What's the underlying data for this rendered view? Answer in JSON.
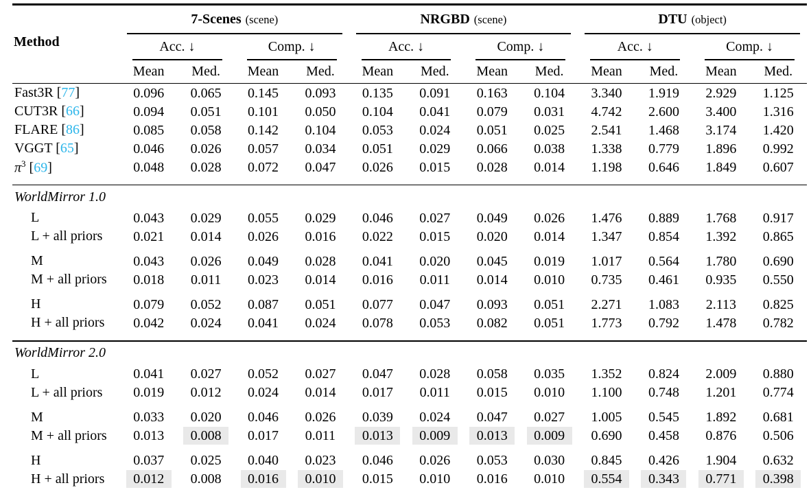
{
  "colors": {
    "citation": "#2bb5ea",
    "highlight": "#e9e9e9"
  },
  "header": {
    "method_label": "Method",
    "groups": [
      {
        "name": "7-Scenes",
        "qualifier": "(scene)"
      },
      {
        "name": "NRGBD",
        "qualifier": "(scene)"
      },
      {
        "name": "DTU",
        "qualifier": "(object)"
      }
    ],
    "metrics": [
      "Acc. ↓",
      "Comp. ↓"
    ],
    "subcols": [
      "Mean",
      "Med."
    ]
  },
  "body": [
    {
      "type": "rows",
      "rows": [
        {
          "label": "Fast3R",
          "cite": "77",
          "values": [
            "0.096",
            "0.065",
            "0.145",
            "0.093",
            "0.135",
            "0.091",
            "0.163",
            "0.104",
            "3.340",
            "1.919",
            "2.929",
            "1.125"
          ]
        },
        {
          "label": "CUT3R",
          "cite": "66",
          "values": [
            "0.094",
            "0.051",
            "0.101",
            "0.050",
            "0.104",
            "0.041",
            "0.079",
            "0.031",
            "4.742",
            "2.600",
            "3.400",
            "1.316"
          ]
        },
        {
          "label": "FLARE",
          "cite": "86",
          "values": [
            "0.085",
            "0.058",
            "0.142",
            "0.104",
            "0.053",
            "0.024",
            "0.051",
            "0.025",
            "2.541",
            "1.468",
            "3.174",
            "1.420"
          ]
        },
        {
          "label": "VGGT",
          "cite": "65",
          "values": [
            "0.046",
            "0.026",
            "0.057",
            "0.034",
            "0.051",
            "0.029",
            "0.066",
            "0.038",
            "1.338",
            "0.779",
            "1.896",
            "0.992"
          ]
        },
        {
          "label": "π",
          "sup": "3",
          "italic": true,
          "cite": "69",
          "values": [
            "0.048",
            "0.028",
            "0.072",
            "0.047",
            "0.026",
            "0.015",
            "0.028",
            "0.014",
            "1.198",
            "0.646",
            "1.849",
            "0.607"
          ]
        }
      ]
    },
    {
      "type": "section",
      "title": "WorldMirror 1.0",
      "rows": [
        {
          "label": "L",
          "indent": true,
          "values": [
            "0.043",
            "0.029",
            "0.055",
            "0.029",
            "0.046",
            "0.027",
            "0.049",
            "0.026",
            "1.476",
            "0.889",
            "1.768",
            "0.917"
          ]
        },
        {
          "label": "L + all priors",
          "indent": true,
          "values": [
            "0.021",
            "0.014",
            "0.026",
            "0.016",
            "0.022",
            "0.015",
            "0.020",
            "0.014",
            "1.347",
            "0.854",
            "1.392",
            "0.865"
          ]
        },
        {
          "label": "M",
          "indent": true,
          "gap_before": true,
          "values": [
            "0.043",
            "0.026",
            "0.049",
            "0.028",
            "0.041",
            "0.020",
            "0.045",
            "0.019",
            "1.017",
            "0.564",
            "1.780",
            "0.690"
          ]
        },
        {
          "label": "M + all priors",
          "indent": true,
          "values": [
            "0.018",
            "0.011",
            "0.023",
            "0.014",
            "0.016",
            "0.011",
            "0.014",
            "0.010",
            "0.735",
            "0.461",
            "0.935",
            "0.550"
          ]
        },
        {
          "label": "H",
          "indent": true,
          "gap_before": true,
          "values": [
            "0.079",
            "0.052",
            "0.087",
            "0.051",
            "0.077",
            "0.047",
            "0.093",
            "0.051",
            "2.271",
            "1.083",
            "2.113",
            "0.825"
          ]
        },
        {
          "label": "H + all priors",
          "indent": true,
          "values": [
            "0.042",
            "0.024",
            "0.041",
            "0.024",
            "0.078",
            "0.053",
            "0.082",
            "0.051",
            "1.773",
            "0.792",
            "1.478",
            "0.782"
          ]
        }
      ]
    },
    {
      "type": "section",
      "title": "WorldMirror 2.0",
      "rows": [
        {
          "label": "L",
          "indent": true,
          "values": [
            "0.041",
            "0.027",
            "0.052",
            "0.027",
            "0.047",
            "0.028",
            "0.058",
            "0.035",
            "1.352",
            "0.824",
            "2.009",
            "0.880"
          ]
        },
        {
          "label": "L + all priors",
          "indent": true,
          "values": [
            "0.019",
            "0.012",
            "0.024",
            "0.014",
            "0.017",
            "0.011",
            "0.015",
            "0.010",
            "1.100",
            "0.748",
            "1.201",
            "0.774"
          ]
        },
        {
          "label": "M",
          "indent": true,
          "gap_before": true,
          "values": [
            "0.033",
            "0.020",
            "0.046",
            "0.026",
            "0.039",
            "0.024",
            "0.047",
            "0.027",
            "1.005",
            "0.545",
            "1.892",
            "0.681"
          ]
        },
        {
          "label": "M + all priors",
          "indent": true,
          "values": [
            "0.013",
            "0.008",
            "0.017",
            "0.011",
            "0.013",
            "0.009",
            "0.013",
            "0.009",
            "0.690",
            "0.458",
            "0.876",
            "0.506"
          ],
          "hl": [
            1,
            4,
            5,
            6,
            7
          ]
        },
        {
          "label": "H",
          "indent": true,
          "gap_before": true,
          "values": [
            "0.037",
            "0.025",
            "0.040",
            "0.023",
            "0.046",
            "0.026",
            "0.053",
            "0.030",
            "0.845",
            "0.426",
            "1.904",
            "0.632"
          ]
        },
        {
          "label": "H + all priors",
          "indent": true,
          "values": [
            "0.012",
            "0.008",
            "0.016",
            "0.010",
            "0.015",
            "0.010",
            "0.016",
            "0.010",
            "0.554",
            "0.343",
            "0.771",
            "0.398"
          ],
          "hl": [
            0,
            2,
            3,
            8,
            9,
            10,
            11
          ]
        }
      ]
    }
  ]
}
